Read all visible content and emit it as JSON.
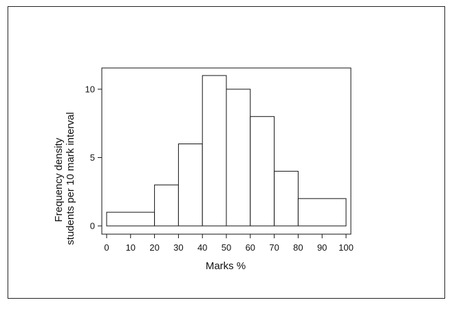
{
  "chart_data": {
    "type": "bar",
    "subtype": "histogram",
    "title": "",
    "xlabel": "Marks %",
    "ylabel_lines": [
      "Frequency density",
      "students per 10 mark interval"
    ],
    "bins": [
      {
        "start": 0,
        "end": 20,
        "value": 1
      },
      {
        "start": 20,
        "end": 30,
        "value": 3
      },
      {
        "start": 30,
        "end": 40,
        "value": 6
      },
      {
        "start": 40,
        "end": 50,
        "value": 11
      },
      {
        "start": 50,
        "end": 60,
        "value": 10
      },
      {
        "start": 60,
        "end": 70,
        "value": 8
      },
      {
        "start": 70,
        "end": 80,
        "value": 4
      },
      {
        "start": 80,
        "end": 100,
        "value": 2
      }
    ],
    "x_ticks": [
      "0",
      "10",
      "20",
      "30",
      "40",
      "50",
      "60",
      "70",
      "80",
      "90",
      "100"
    ],
    "y_ticks": [
      "0",
      "5",
      "10"
    ],
    "xlim": [
      0,
      100
    ],
    "ylim": [
      0,
      11
    ],
    "grid": false,
    "colors": {
      "bar_fill": "#ffffff",
      "bar_stroke": "#111111",
      "axis": "#111111"
    }
  }
}
